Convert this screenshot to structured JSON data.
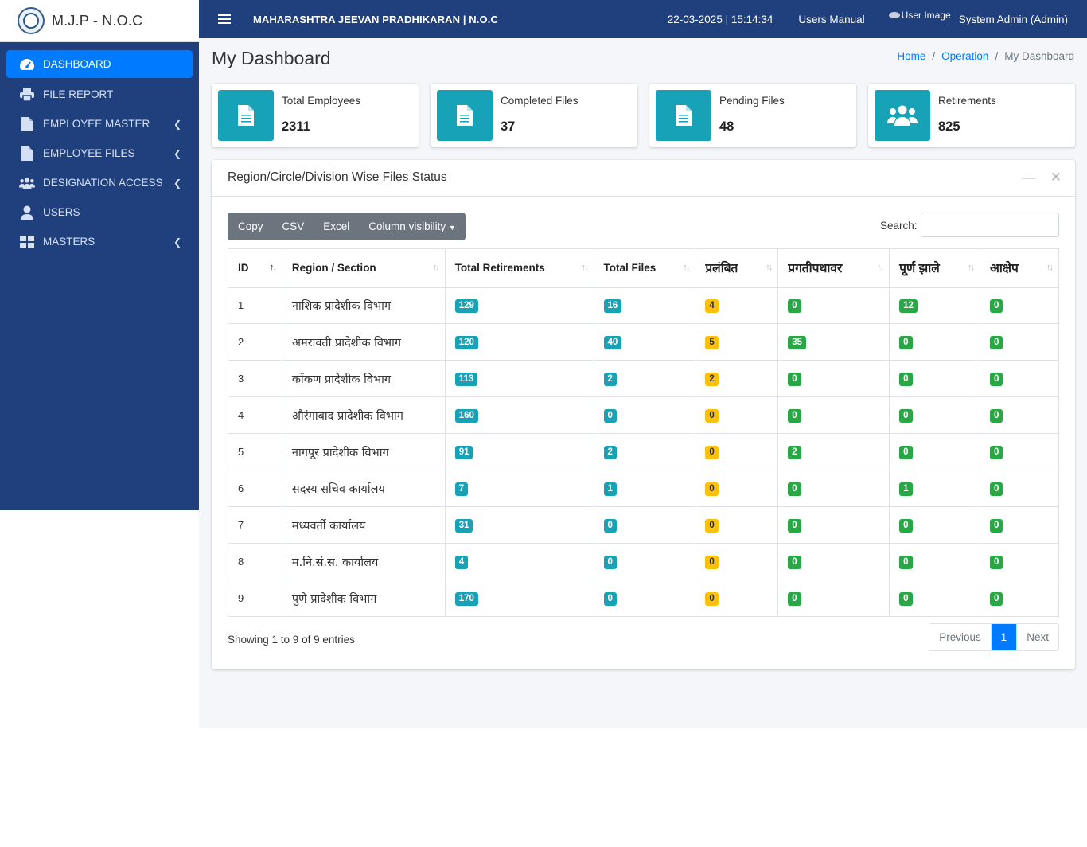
{
  "brand": {
    "title": "M.J.P - N.O.C"
  },
  "topbar": {
    "app_title": "MAHARASHTRA JEEVAN PRADHIKARAN | N.O.C",
    "datetime": "22-03-2025 | 15:14:34",
    "users_manual": "Users Manual",
    "user_image_alt": "User Image",
    "user_name": "System Admin (Admin)"
  },
  "sidebar": {
    "items": [
      {
        "label": "DASHBOARD",
        "icon": "tachometer-icon",
        "active": true,
        "has_caret": false
      },
      {
        "label": "FILE REPORT",
        "icon": "printer-icon",
        "active": false,
        "has_caret": false
      },
      {
        "label": "EMPLOYEE MASTER",
        "icon": "file-icon",
        "active": false,
        "has_caret": true
      },
      {
        "label": "EMPLOYEE FILES",
        "icon": "file-icon",
        "active": false,
        "has_caret": true
      },
      {
        "label": "DESIGNATION ACCESS",
        "icon": "users-icon",
        "active": false,
        "has_caret": true
      },
      {
        "label": "USERS",
        "icon": "user-icon",
        "active": false,
        "has_caret": false
      },
      {
        "label": "MASTERS",
        "icon": "grid-icon",
        "active": false,
        "has_caret": true
      }
    ]
  },
  "page": {
    "title": "My Dashboard",
    "breadcrumb": {
      "home": "Home",
      "operation": "Operation",
      "current": "My Dashboard"
    }
  },
  "info_boxes": [
    {
      "label": "Total Employees",
      "value": "2311",
      "icon": "file-text-icon"
    },
    {
      "label": "Completed Files",
      "value": "37",
      "icon": "file-text-icon"
    },
    {
      "label": "Pending Files",
      "value": "48",
      "icon": "file-text-icon"
    },
    {
      "label": "Retirements",
      "value": "825",
      "icon": "users-icon"
    }
  ],
  "card": {
    "title": "Region/Circle/Division Wise Files Status",
    "buttons": {
      "copy": "Copy",
      "csv": "CSV",
      "excel": "Excel",
      "column_visibility": "Column visibility"
    },
    "search_label": "Search:",
    "search_value": ""
  },
  "table": {
    "headers": [
      "ID",
      "Region / Section",
      "Total Retirements",
      "Total Files",
      "प्रलंबित",
      "प्रगतीपथावर",
      "पूर्ण झाले",
      "आक्षेप"
    ],
    "rows": [
      [
        "1",
        "नाशिक प्रादेशीक विभाग",
        "129",
        "16",
        "4",
        "0",
        "12",
        "0"
      ],
      [
        "2",
        "अमरावती प्रादेशीक विभाग",
        "120",
        "40",
        "5",
        "35",
        "0",
        "0"
      ],
      [
        "3",
        "कोंकण प्रादेशीक विभाग",
        "113",
        "2",
        "2",
        "0",
        "0",
        "0"
      ],
      [
        "4",
        "औरंगाबाद प्रादेशीक विभाग",
        "160",
        "0",
        "0",
        "0",
        "0",
        "0"
      ],
      [
        "5",
        "नागपूर प्रादेशीक विभाग",
        "91",
        "2",
        "0",
        "2",
        "0",
        "0"
      ],
      [
        "6",
        "सदस्य सचिव कार्यालय",
        "7",
        "1",
        "0",
        "0",
        "1",
        "0"
      ],
      [
        "7",
        "मध्यवर्ती कार्यालय",
        "31",
        "0",
        "0",
        "0",
        "0",
        "0"
      ],
      [
        "8",
        "म.नि.सं.स. कार्यालय",
        "4",
        "0",
        "0",
        "0",
        "0",
        "0"
      ],
      [
        "9",
        "पुणे प्रादेशीक विभाग",
        "170",
        "0",
        "0",
        "0",
        "0",
        "0"
      ]
    ],
    "showing": "Showing 1 to 9 of 9 entries",
    "pagination": {
      "previous": "Previous",
      "page": "1",
      "next": "Next"
    }
  },
  "colors": {
    "sidebar": "#1f3f7d",
    "active": "#007bff",
    "info": "#17a2b8",
    "warning": "#ffc107",
    "success": "#28a745"
  }
}
